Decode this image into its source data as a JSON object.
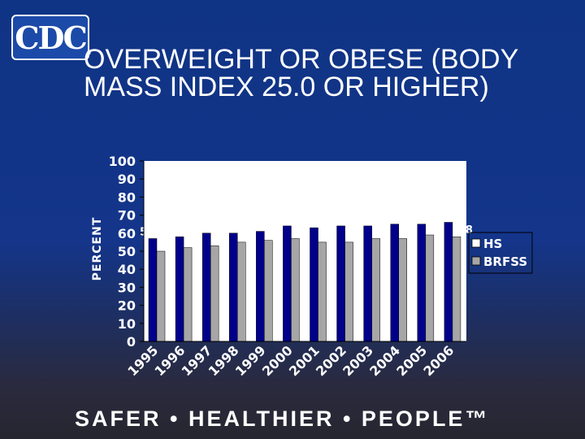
{
  "logo": {
    "text": "CDC"
  },
  "title": "OVERWEIGHT OR OBESE (BODY MASS INDEX 25.0 OR HIGHER)",
  "footer": "SAFER • HEALTHIER • PEOPLE™",
  "colors": {
    "hs": "#00008b",
    "brfss": "#a6a6a6",
    "plot_bg": "#ffffff",
    "text": "#ffffff",
    "background": "#14358a"
  },
  "chart_data": {
    "type": "bar",
    "title": "",
    "xlabel": "",
    "ylabel": "PERCENT",
    "ylim": [
      0,
      100
    ],
    "yticks": [
      0,
      10,
      20,
      30,
      40,
      50,
      60,
      70,
      80,
      90,
      100
    ],
    "grid": false,
    "legend_position": "right",
    "categories": [
      "1995",
      "1996",
      "1997",
      "1998",
      "1999",
      "2000",
      "2001",
      "2002",
      "2003",
      "2004",
      "2005",
      "2006"
    ],
    "series": [
      {
        "name": "HS",
        "values": [
          57,
          58,
          60,
          60,
          61,
          64,
          63,
          64,
          64,
          65,
          65,
          66
        ]
      },
      {
        "name": "BRFSS",
        "values": [
          50,
          52,
          53,
          55,
          56,
          57,
          55,
          55,
          57,
          57,
          59,
          58
        ]
      }
    ]
  }
}
